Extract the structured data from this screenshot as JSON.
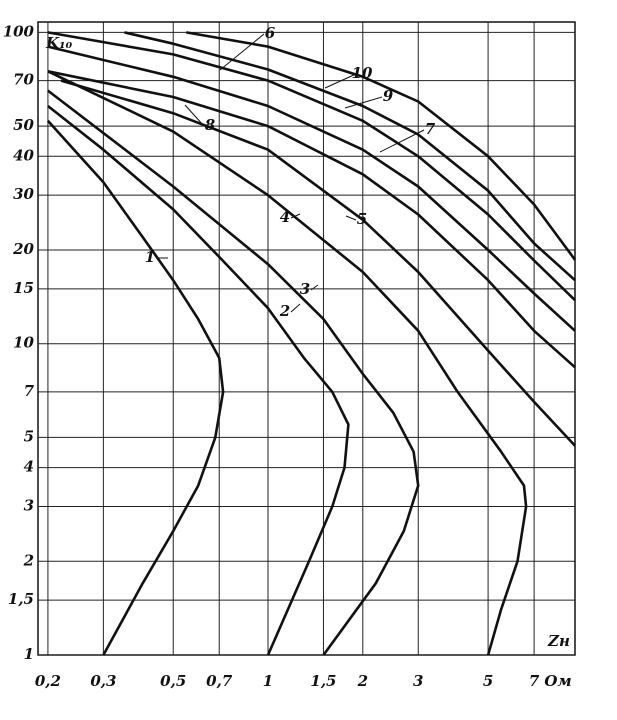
{
  "chart_data": {
    "type": "line",
    "y_label": "K₁₀",
    "x_label": "Zн",
    "x_unit": "Ом",
    "xscale": "log",
    "yscale": "log",
    "grid": true,
    "color": "#111111",
    "xlim": [
      0.186,
      9.44
    ],
    "ylim": [
      1,
      108
    ],
    "xticks": [
      {
        "value": 0.2,
        "label": "0,2"
      },
      {
        "value": 0.3,
        "label": "0,3"
      },
      {
        "value": 0.5,
        "label": "0,5"
      },
      {
        "value": 0.7,
        "label": "0,7"
      },
      1,
      {
        "value": 1.5,
        "label": "1,5"
      },
      2,
      3,
      5,
      7
    ],
    "yticks": [
      1,
      {
        "value": 1.5,
        "label": "1,5"
      },
      2,
      3,
      4,
      5,
      7,
      10,
      15,
      20,
      30,
      40,
      50,
      70,
      100
    ],
    "series": [
      {
        "name": "1",
        "x": [
          0.2,
          0.3,
          0.4,
          0.5,
          0.6,
          0.7,
          0.72,
          0.68,
          0.6,
          0.5,
          0.4,
          0.3
        ],
        "values": [
          52,
          33,
          22,
          16,
          12,
          9,
          7,
          5,
          3.5,
          2.5,
          1.7,
          1
        ]
      },
      {
        "name": "2",
        "x": [
          0.2,
          0.3,
          0.5,
          0.7,
          1,
          1.3,
          1.6,
          1.8,
          1.75,
          1.6,
          1.35,
          1
        ],
        "values": [
          58,
          42,
          27,
          19,
          13,
          9,
          7,
          5.5,
          4,
          3,
          2,
          1
        ]
      },
      {
        "name": "3",
        "x": [
          0.2,
          0.5,
          1,
          1.5,
          2,
          2.5,
          2.9,
          3,
          2.7,
          2.2,
          1.5
        ],
        "values": [
          65,
          32,
          18,
          12,
          8,
          6,
          4.5,
          3.5,
          2.5,
          1.7,
          1
        ]
      },
      {
        "name": "4",
        "x": [
          0.2,
          0.5,
          1,
          2,
          3,
          4,
          5.5,
          6.5,
          6.6,
          6.2,
          5.5,
          5
        ],
        "values": [
          75,
          48,
          30,
          17,
          11,
          7,
          4.5,
          3.5,
          3,
          2,
          1.4,
          1
        ]
      },
      {
        "name": "5",
        "x": [
          0.22,
          0.5,
          1,
          2,
          3,
          5,
          7,
          9.44
        ],
        "values": [
          70,
          55,
          42,
          25,
          17,
          9.5,
          6.5,
          4.7
        ]
      },
      {
        "name": "6",
        "x": [
          0.2,
          0.5,
          1,
          2,
          3,
          5,
          7,
          9.44
        ],
        "values": [
          75,
          62,
          50,
          35,
          26,
          16,
          11,
          8.4
        ]
      },
      {
        "name": "7",
        "x": [
          0.2,
          0.5,
          1,
          2,
          3,
          5,
          7,
          9.44
        ],
        "values": [
          90,
          72,
          58,
          42,
          32,
          20,
          14.5,
          11
        ]
      },
      {
        "name": "8",
        "x": [
          0.2,
          0.5,
          1,
          2,
          3,
          5,
          7,
          9.44
        ],
        "values": [
          100,
          85,
          70,
          52,
          40,
          26,
          18.5,
          13.8
        ]
      },
      {
        "name": "9",
        "x": [
          0.35,
          0.5,
          1,
          2,
          3,
          5,
          7,
          9.44
        ],
        "values": [
          100,
          92,
          76,
          58,
          47,
          31,
          21,
          16
        ]
      },
      {
        "name": "10",
        "x": [
          0.55,
          1,
          2,
          3,
          5,
          7,
          9.44
        ],
        "values": [
          100,
          90,
          72,
          60,
          40,
          28,
          18.6
        ]
      }
    ]
  }
}
